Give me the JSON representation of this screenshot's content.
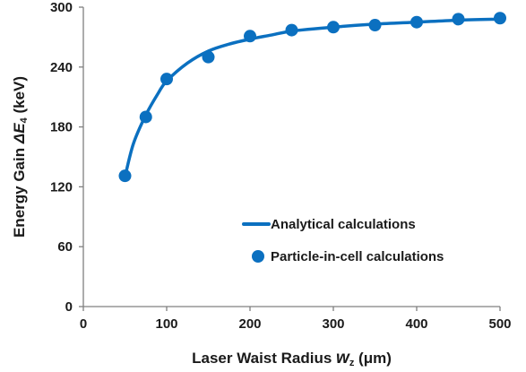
{
  "chart_data": {
    "type": "line",
    "xlabel_prefix": "Laser Waist Radius ",
    "xlabel_var": "w",
    "xlabel_sub": "z",
    "xlabel_suffix": " (μm)",
    "ylabel_prefix": "Energy Gain ",
    "ylabel_var": "ΔE",
    "ylabel_sub": "4",
    "ylabel_suffix": " (keV)",
    "xlim": [
      0,
      500
    ],
    "ylim": [
      0,
      300
    ],
    "xticks": [
      0,
      100,
      200,
      300,
      400,
      500
    ],
    "yticks": [
      0,
      60,
      120,
      180,
      240,
      300
    ],
    "legend_position": "lower-right",
    "grid": false,
    "color": "#0b70c0",
    "series": [
      {
        "name": "Analytical calculations",
        "kind": "line",
        "x": [
          50,
          60,
          75,
          90,
          100,
          125,
          150,
          175,
          200,
          225,
          250,
          300,
          350,
          400,
          450,
          500
        ],
        "y": [
          130,
          163,
          192,
          214,
          226,
          244,
          256,
          263,
          268,
          272,
          276,
          280,
          283,
          285,
          287,
          288
        ]
      },
      {
        "name": "Particle-in-cell calculations",
        "kind": "scatter",
        "x": [
          50,
          75,
          100,
          150,
          200,
          250,
          300,
          350,
          400,
          450,
          500
        ],
        "y": [
          131,
          190,
          228,
          250,
          271,
          277,
          280,
          282,
          285,
          288,
          289
        ]
      }
    ]
  }
}
